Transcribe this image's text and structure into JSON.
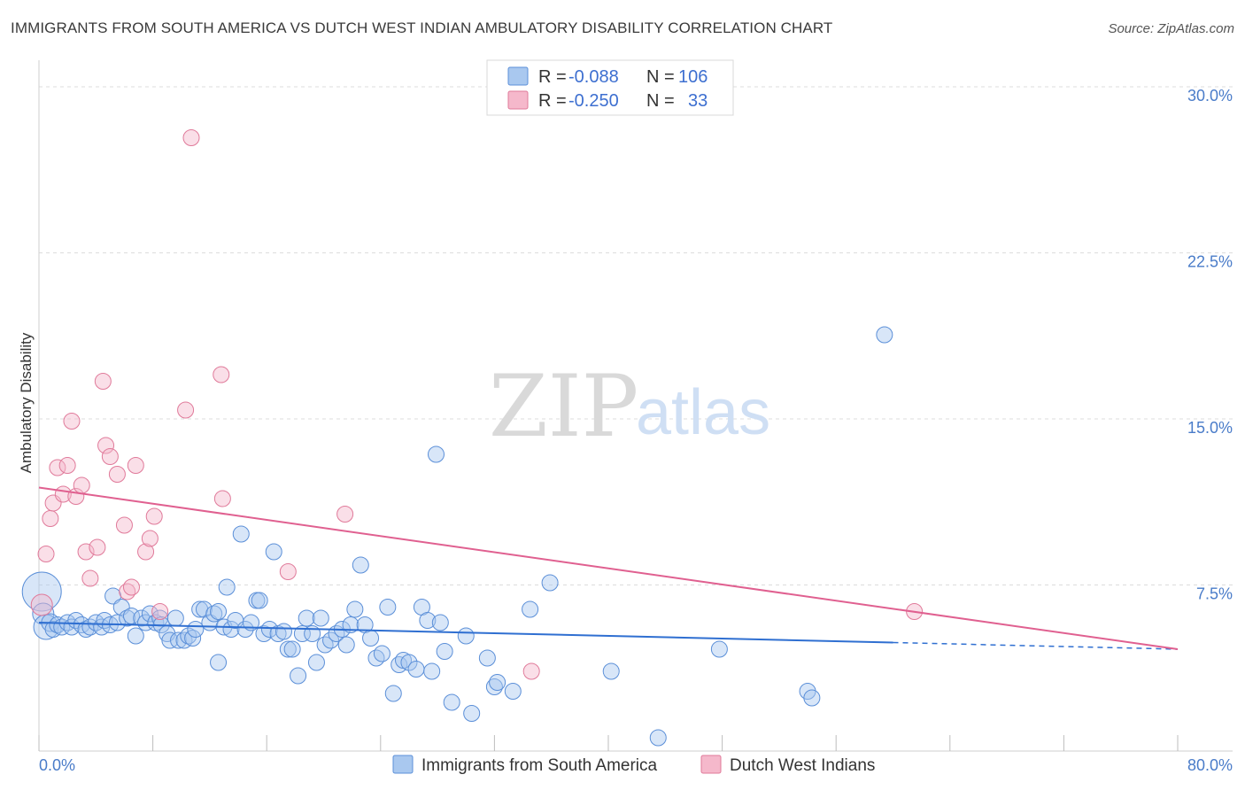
{
  "header": {
    "title": "IMMIGRANTS FROM SOUTH AMERICA VS DUTCH WEST INDIAN AMBULATORY DISABILITY CORRELATION CHART",
    "source": "Source: ZipAtlas.com"
  },
  "watermark": {
    "zip": "ZIP",
    "atlas": "atlas"
  },
  "legend": {
    "r_label": "R =",
    "n_label": "N =",
    "rows": [
      {
        "r": "-0.088",
        "n": "106",
        "color": "#a9c8ef"
      },
      {
        "r": "-0.250",
        "n": "33",
        "color": "#f5b8cb"
      }
    ]
  },
  "bottom_legend": [
    {
      "label": "Immigrants from South America",
      "color": "#a9c8ef"
    },
    {
      "label": "Dutch West Indians",
      "color": "#f5b8cb"
    }
  ],
  "chart_data": {
    "type": "scatter",
    "ylabel": "Ambulatory Disability",
    "xlim": [
      0,
      80
    ],
    "ylim": [
      0,
      30.8
    ],
    "x_tick_labels": [
      "0.0%",
      "80.0%"
    ],
    "y_ticks": [
      {
        "value": 7.5,
        "label": "7.5%"
      },
      {
        "value": 15.0,
        "label": "15.0%"
      },
      {
        "value": 22.5,
        "label": "22.5%"
      },
      {
        "value": 30.0,
        "label": "30.0%"
      }
    ],
    "grid": true,
    "series": [
      {
        "name": "Immigrants from South America",
        "color": "#a9c8ef",
        "stroke": "#5b8fd8",
        "trend": {
          "x0": 0,
          "y0": 5.8,
          "x1": 60,
          "y1": 4.9,
          "dash_to_x": 80,
          "dash_to_y": 4.6,
          "color": "#2f6fd1"
        },
        "points": [
          [
            0.2,
            7.2,
            22
          ],
          [
            0.3,
            6.2,
            12
          ],
          [
            0.5,
            5.6,
            14
          ],
          [
            0.8,
            5.8,
            10
          ],
          [
            1.0,
            5.5,
            9
          ],
          [
            1.3,
            5.7,
            9
          ],
          [
            1.6,
            5.6,
            9
          ],
          [
            2.0,
            5.8,
            9
          ],
          [
            2.3,
            5.6,
            9
          ],
          [
            2.6,
            5.9,
            9
          ],
          [
            3.0,
            5.7,
            9
          ],
          [
            3.3,
            5.5,
            9
          ],
          [
            3.6,
            5.6,
            9
          ],
          [
            4.0,
            5.8,
            9
          ],
          [
            4.4,
            5.6,
            9
          ],
          [
            4.6,
            5.9,
            9
          ],
          [
            5.0,
            5.7,
            9
          ],
          [
            5.2,
            7.0,
            9
          ],
          [
            5.5,
            5.8,
            9
          ],
          [
            5.8,
            6.5,
            9
          ],
          [
            6.2,
            6.0,
            9
          ],
          [
            6.5,
            6.1,
            9
          ],
          [
            6.8,
            5.2,
            9
          ],
          [
            7.2,
            6.0,
            9
          ],
          [
            7.5,
            5.8,
            9
          ],
          [
            7.8,
            6.2,
            9
          ],
          [
            8.2,
            5.8,
            9
          ],
          [
            8.5,
            6.0,
            9
          ],
          [
            8.6,
            5.7,
            9
          ],
          [
            9.0,
            5.3,
            9
          ],
          [
            9.2,
            5.0,
            9
          ],
          [
            9.6,
            6.0,
            9
          ],
          [
            9.8,
            5.0,
            9
          ],
          [
            10.2,
            5.0,
            9
          ],
          [
            10.5,
            5.2,
            9
          ],
          [
            10.8,
            5.1,
            9
          ],
          [
            11.0,
            5.5,
            9
          ],
          [
            11.3,
            6.4,
            9
          ],
          [
            11.6,
            6.4,
            9
          ],
          [
            12.0,
            5.8,
            9
          ],
          [
            12.3,
            6.2,
            9
          ],
          [
            12.6,
            6.3,
            9
          ],
          [
            12.6,
            4.0,
            9
          ],
          [
            13.0,
            5.6,
            9
          ],
          [
            13.2,
            7.4,
            9
          ],
          [
            13.5,
            5.5,
            9
          ],
          [
            13.8,
            5.9,
            9
          ],
          [
            14.2,
            9.8,
            9
          ],
          [
            14.5,
            5.5,
            9
          ],
          [
            14.9,
            5.8,
            9
          ],
          [
            15.3,
            6.8,
            9
          ],
          [
            15.5,
            6.8,
            9
          ],
          [
            15.8,
            5.3,
            9
          ],
          [
            16.2,
            5.5,
            9
          ],
          [
            16.5,
            9.0,
            9
          ],
          [
            16.8,
            5.3,
            9
          ],
          [
            17.2,
            5.4,
            9
          ],
          [
            17.5,
            4.6,
            9
          ],
          [
            17.8,
            4.6,
            9
          ],
          [
            18.2,
            3.4,
            9
          ],
          [
            18.5,
            5.3,
            9
          ],
          [
            18.8,
            6.0,
            9
          ],
          [
            19.2,
            5.3,
            9
          ],
          [
            19.5,
            4.0,
            9
          ],
          [
            19.8,
            6.0,
            9
          ],
          [
            20.1,
            4.8,
            9
          ],
          [
            20.5,
            5.0,
            9
          ],
          [
            20.9,
            5.3,
            9
          ],
          [
            21.3,
            5.5,
            9
          ],
          [
            21.6,
            4.8,
            9
          ],
          [
            21.9,
            5.7,
            9
          ],
          [
            22.2,
            6.4,
            9
          ],
          [
            22.6,
            8.4,
            9
          ],
          [
            22.9,
            5.7,
            9
          ],
          [
            23.3,
            5.1,
            9
          ],
          [
            23.7,
            4.2,
            9
          ],
          [
            24.1,
            4.4,
            9
          ],
          [
            24.5,
            6.5,
            9
          ],
          [
            24.9,
            2.6,
            9
          ],
          [
            25.3,
            3.9,
            9
          ],
          [
            25.6,
            4.1,
            9
          ],
          [
            26.0,
            4.0,
            9
          ],
          [
            26.5,
            3.7,
            9
          ],
          [
            26.9,
            6.5,
            9
          ],
          [
            27.3,
            5.9,
            9
          ],
          [
            27.6,
            3.6,
            9
          ],
          [
            27.9,
            13.4,
            9
          ],
          [
            28.2,
            5.8,
            9
          ],
          [
            28.5,
            4.5,
            9
          ],
          [
            29.0,
            2.2,
            9
          ],
          [
            30.0,
            5.2,
            9
          ],
          [
            30.4,
            1.7,
            9
          ],
          [
            31.5,
            4.2,
            9
          ],
          [
            32.0,
            2.9,
            9
          ],
          [
            32.2,
            3.1,
            9
          ],
          [
            33.3,
            2.7,
            9
          ],
          [
            34.5,
            6.4,
            9
          ],
          [
            35.9,
            7.6,
            9
          ],
          [
            40.2,
            3.6,
            9
          ],
          [
            43.5,
            0.6,
            9
          ],
          [
            47.8,
            4.6,
            9
          ],
          [
            54.0,
            2.7,
            9
          ],
          [
            54.3,
            2.4,
            9
          ],
          [
            59.4,
            18.8,
            9
          ]
        ]
      },
      {
        "name": "Dutch West Indians",
        "color": "#f5b8cb",
        "stroke": "#e07a9a",
        "trend": {
          "x0": 0,
          "y0": 11.9,
          "x1": 80,
          "y1": 4.6,
          "color": "#e06090"
        },
        "points": [
          [
            0.2,
            6.6,
            12
          ],
          [
            0.5,
            8.9,
            9
          ],
          [
            0.8,
            10.5,
            9
          ],
          [
            1.0,
            11.2,
            9
          ],
          [
            1.3,
            12.8,
            9
          ],
          [
            1.7,
            11.6,
            9
          ],
          [
            2.0,
            12.9,
            9
          ],
          [
            2.3,
            14.9,
            9
          ],
          [
            2.6,
            11.5,
            9
          ],
          [
            3.0,
            12.0,
            9
          ],
          [
            3.3,
            9.0,
            9
          ],
          [
            3.6,
            7.8,
            9
          ],
          [
            4.1,
            9.2,
            9
          ],
          [
            4.5,
            16.7,
            9
          ],
          [
            4.7,
            13.8,
            9
          ],
          [
            5.0,
            13.3,
            9
          ],
          [
            5.5,
            12.5,
            9
          ],
          [
            6.0,
            10.2,
            9
          ],
          [
            6.2,
            7.2,
            9
          ],
          [
            6.5,
            7.4,
            9
          ],
          [
            6.8,
            12.9,
            9
          ],
          [
            7.5,
            9.0,
            9
          ],
          [
            7.8,
            9.6,
            9
          ],
          [
            8.1,
            10.6,
            9
          ],
          [
            8.5,
            6.3,
            9
          ],
          [
            10.3,
            15.4,
            9
          ],
          [
            10.7,
            27.7,
            9
          ],
          [
            12.8,
            17.0,
            9
          ],
          [
            12.9,
            11.4,
            9
          ],
          [
            17.5,
            8.1,
            9
          ],
          [
            21.5,
            10.7,
            9
          ],
          [
            34.6,
            3.6,
            9
          ],
          [
            61.5,
            6.3,
            9
          ]
        ]
      }
    ]
  }
}
